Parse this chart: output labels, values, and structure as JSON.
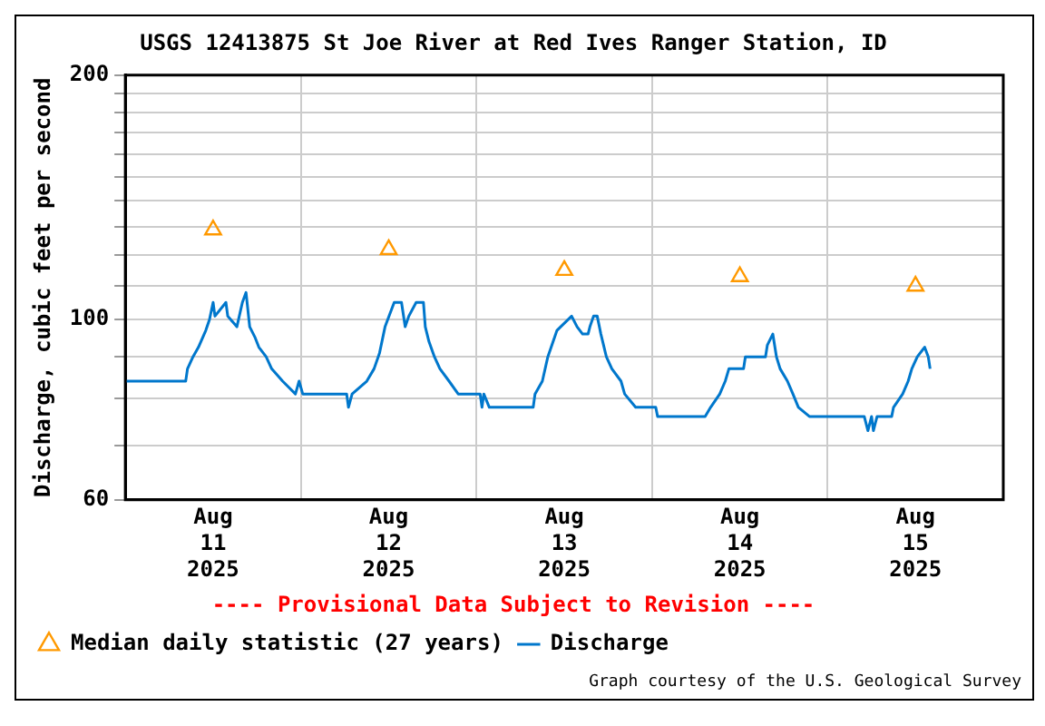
{
  "chart_data": {
    "type": "line",
    "title": "USGS 12413875 St Joe River at Red Ives Ranger Station, ID",
    "ylabel": "Discharge, cubic feet per second",
    "annotations": [
      "---- Provisional Data Subject to Revision ----",
      "Graph courtesy of the U.S. Geological Survey"
    ],
    "log": "y",
    "grid": true,
    "legend": "bottom left",
    "xlim": [
      "2025-08-11T00:00",
      "2025-08-16T00:00"
    ],
    "xticks": [
      {
        "value": "2025-08-11T00:00",
        "label": null
      },
      {
        "value": "2025-08-11T12:00",
        "label": "Aug 11 2025"
      },
      {
        "value": "2025-08-12T00:00",
        "label": null
      },
      {
        "value": "2025-08-12T12:00",
        "label": "Aug 12 2025"
      },
      {
        "value": "2025-08-13T00:00",
        "label": null
      },
      {
        "value": "2025-08-13T12:00",
        "label": "Aug 13 2025"
      },
      {
        "value": "2025-08-14T00:00",
        "label": null
      },
      {
        "value": "2025-08-14T12:00",
        "label": "Aug 14 2025"
      },
      {
        "value": "2025-08-15T00:00",
        "label": null
      },
      {
        "value": "2025-08-15T12:00",
        "label": "Aug 15 2025"
      },
      {
        "value": "2025-08-16T00:00",
        "label": null
      }
    ],
    "ylim": [
      60,
      200
    ],
    "yticks": [
      60,
      {
        "value": 70,
        "label": null
      },
      {
        "value": 80,
        "label": null
      },
      {
        "value": 90,
        "label": null
      },
      100,
      {
        "value": 110,
        "label": null
      },
      {
        "value": 120,
        "label": null
      },
      {
        "value": 130,
        "label": null
      },
      {
        "value": 140,
        "label": null
      },
      {
        "value": 150,
        "label": null
      },
      {
        "value": 160,
        "label": null
      },
      {
        "value": 170,
        "label": null
      },
      {
        "value": 180,
        "label": null
      },
      {
        "value": 190,
        "label": null
      },
      200
    ],
    "series": [
      {
        "name": "Median daily statistic (27 years)",
        "type": "scatter",
        "marker": "triangle",
        "color": "#ff9900",
        "x": [
          "2025-08-11T12:00",
          "2025-08-12T12:00",
          "2025-08-13T12:00",
          "2025-08-14T12:00",
          "2025-08-15T12:00"
        ],
        "values": [
          129,
          122,
          115,
          113,
          110
        ]
      },
      {
        "name": "Discharge",
        "type": "line",
        "marker": "none",
        "color": "#0077cc",
        "x": [
          "2025-08-11T00:00",
          "2025-08-11T08:15",
          "2025-08-11T08:30",
          "2025-08-11T09:15",
          "2025-08-11T10:00",
          "2025-08-11T11:00",
          "2025-08-11T11:30",
          "2025-08-11T12:00",
          "2025-08-11T12:15",
          "2025-08-11T13:45",
          "2025-08-11T14:00",
          "2025-08-11T15:15",
          "2025-08-11T16:00",
          "2025-08-11T16:30",
          "2025-08-11T17:00",
          "2025-08-11T17:45",
          "2025-08-11T18:15",
          "2025-08-11T19:15",
          "2025-08-11T20:00",
          "2025-08-11T21:30",
          "2025-08-11T23:15",
          "2025-08-11T23:45",
          "2025-08-12T00:15",
          "2025-08-12T06:15",
          "2025-08-12T06:30",
          "2025-08-12T07:00",
          "2025-08-12T09:00",
          "2025-08-12T10:00",
          "2025-08-12T10:45",
          "2025-08-12T11:30",
          "2025-08-12T12:45",
          "2025-08-12T13:45",
          "2025-08-12T14:15",
          "2025-08-12T14:45",
          "2025-08-12T15:45",
          "2025-08-12T16:45",
          "2025-08-12T17:00",
          "2025-08-12T17:30",
          "2025-08-12T18:15",
          "2025-08-12T19:00",
          "2025-08-12T20:15",
          "2025-08-12T21:30",
          "2025-08-13T00:30",
          "2025-08-13T00:45",
          "2025-08-13T01:00",
          "2025-08-13T01:45",
          "2025-08-13T07:45",
          "2025-08-13T08:00",
          "2025-08-13T09:00",
          "2025-08-13T09:45",
          "2025-08-13T11:00",
          "2025-08-13T11:30",
          "2025-08-13T13:00",
          "2025-08-13T13:45",
          "2025-08-13T14:30",
          "2025-08-13T15:15",
          "2025-08-13T15:30",
          "2025-08-13T16:00",
          "2025-08-13T16:30",
          "2025-08-13T17:00",
          "2025-08-13T17:45",
          "2025-08-13T18:30",
          "2025-08-13T19:45",
          "2025-08-13T20:15",
          "2025-08-13T21:45",
          "2025-08-14T00:30",
          "2025-08-14T00:45",
          "2025-08-14T07:15",
          "2025-08-14T08:00",
          "2025-08-14T09:15",
          "2025-08-14T10:00",
          "2025-08-14T10:30",
          "2025-08-14T12:30",
          "2025-08-14T12:45",
          "2025-08-14T15:30",
          "2025-08-14T15:45",
          "2025-08-14T16:30",
          "2025-08-14T17:00",
          "2025-08-14T17:30",
          "2025-08-14T18:30",
          "2025-08-14T19:15",
          "2025-08-14T20:00",
          "2025-08-14T21:30",
          "2025-08-15T05:00",
          "2025-08-15T05:30",
          "2025-08-15T06:00",
          "2025-08-15T06:15",
          "2025-08-15T06:45",
          "2025-08-15T08:45",
          "2025-08-15T09:00",
          "2025-08-15T10:15",
          "2025-08-15T11:00",
          "2025-08-15T11:30",
          "2025-08-15T12:15",
          "2025-08-15T13:15",
          "2025-08-15T13:45",
          "2025-08-15T14:00"
        ],
        "values": [
          84,
          84,
          87,
          90,
          92.5,
          97,
          100,
          105,
          101,
          105,
          101,
          98,
          105,
          108,
          98,
          95,
          92.5,
          90,
          87,
          84,
          81,
          84,
          81,
          81,
          78,
          81,
          84,
          87,
          91,
          98,
          105,
          105,
          98,
          101,
          105,
          105,
          98,
          94,
          90,
          87,
          84,
          81,
          81,
          78,
          81,
          78,
          78,
          81,
          84,
          90,
          97,
          98,
          101,
          98,
          96,
          96,
          98,
          101,
          101,
          96,
          90,
          87,
          84,
          81,
          78,
          78,
          76,
          76,
          78,
          81,
          84,
          87,
          87,
          90,
          90,
          93,
          96,
          90,
          87,
          84,
          81,
          78,
          76,
          76,
          73,
          76,
          73,
          76,
          76,
          78,
          81,
          84,
          87,
          90,
          92.5,
          90,
          87
        ]
      }
    ]
  }
}
